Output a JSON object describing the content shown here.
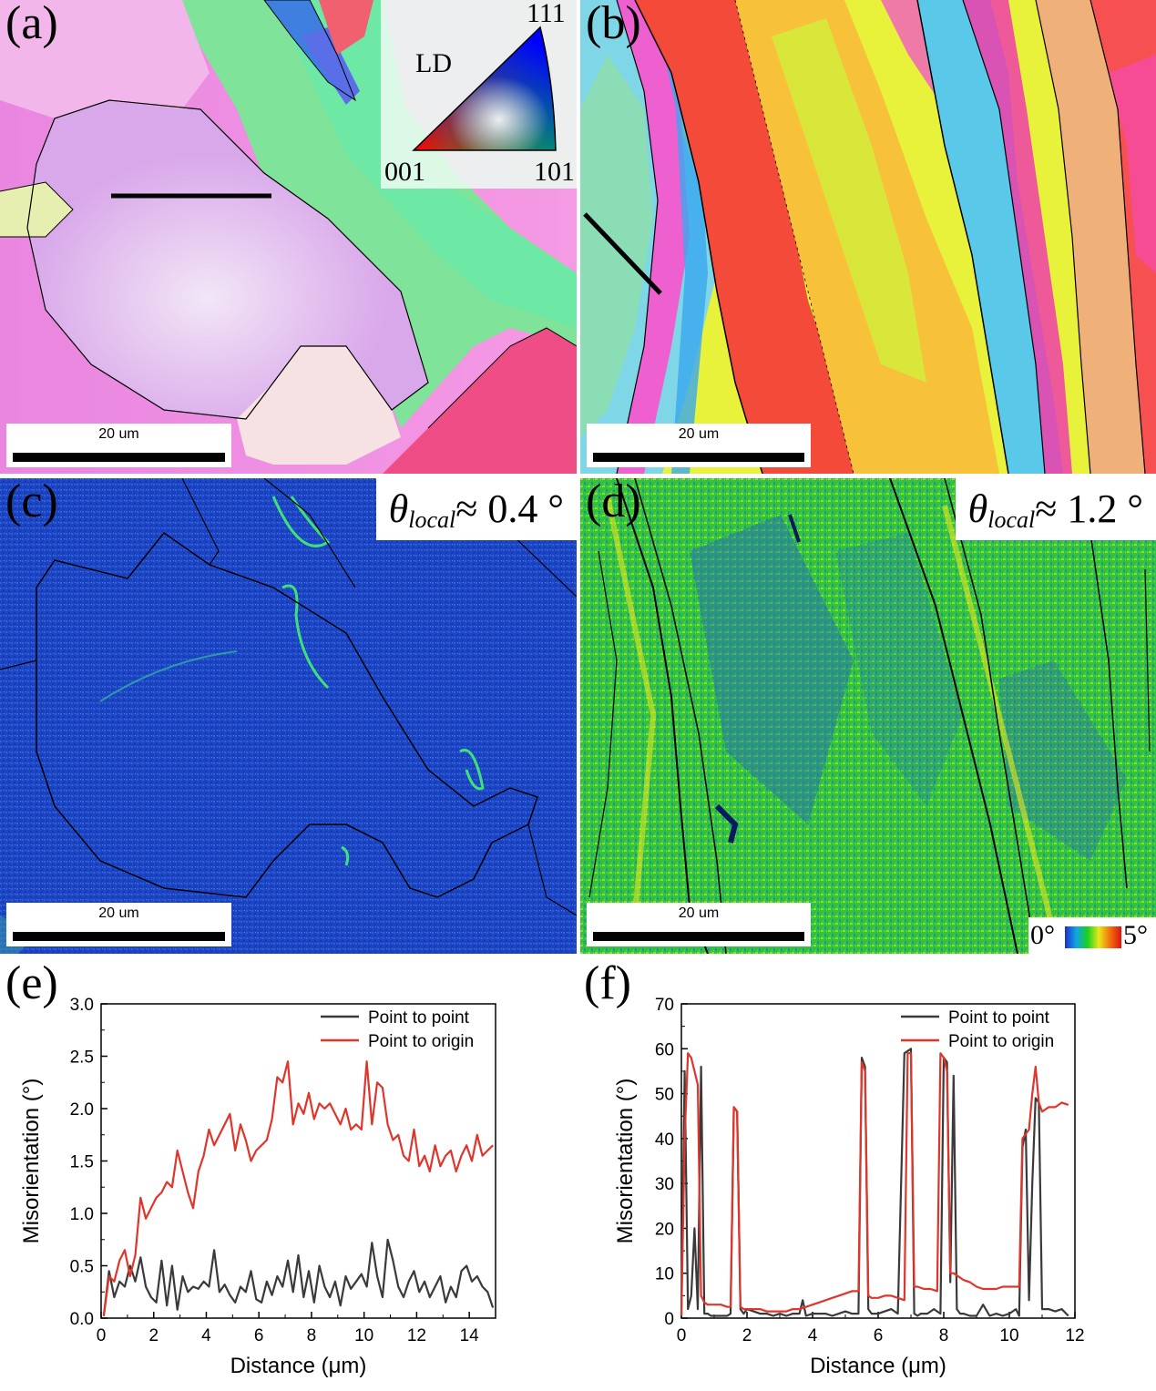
{
  "panels": {
    "a": {
      "label": "(a)",
      "scale_text": "20 um"
    },
    "b": {
      "label": "(b)",
      "scale_text": "20 um"
    },
    "c": {
      "label": "(c)",
      "scale_text": "20 um",
      "theta_sub": "local",
      "theta_value": "≈ 0.4 °"
    },
    "d": {
      "label": "(d)",
      "scale_text": "20 um",
      "theta_sub": "local",
      "theta_value": "≈ 1.2 °"
    },
    "e": {
      "label": "(e)"
    },
    "f": {
      "label": "(f)"
    }
  },
  "ipf_legend": {
    "axis": "LD",
    "corner_111": "111",
    "corner_001": "001",
    "corner_101": "101"
  },
  "kam_colorbar": {
    "min_label": "0°",
    "max_label": "5°"
  },
  "colors": {
    "point_to_point": "#3a3a3a",
    "point_to_origin": "#e0352b",
    "kam_low": "#1f2fc8",
    "kam_high": "#e01010"
  },
  "chart_data": [
    {
      "type": "line",
      "panel": "(e)",
      "xlabel": "Distance (μm)",
      "ylabel": "Misorientation (°)",
      "xlim": [
        0,
        15
      ],
      "ylim": [
        0,
        3.0
      ],
      "xticks": [
        "0",
        "2",
        "4",
        "6",
        "8",
        "10",
        "12",
        "14"
      ],
      "yticks": [
        "0.0",
        "0.5",
        "1.0",
        "1.5",
        "2.0",
        "2.5",
        "3.0"
      ],
      "legend_position": "top-right",
      "series": [
        {
          "name": "Point to point",
          "x": [
            0.1,
            0.3,
            0.5,
            0.7,
            0.9,
            1.1,
            1.3,
            1.5,
            1.7,
            1.9,
            2.1,
            2.3,
            2.5,
            2.7,
            2.9,
            3.1,
            3.3,
            3.5,
            3.7,
            3.9,
            4.1,
            4.3,
            4.5,
            4.7,
            4.9,
            5.1,
            5.3,
            5.5,
            5.7,
            5.9,
            6.1,
            6.3,
            6.5,
            6.7,
            6.9,
            7.1,
            7.3,
            7.5,
            7.7,
            7.9,
            8.1,
            8.3,
            8.5,
            8.7,
            8.9,
            9.1,
            9.3,
            9.5,
            9.7,
            9.9,
            10.1,
            10.3,
            10.5,
            10.7,
            10.9,
            11.1,
            11.3,
            11.5,
            11.7,
            11.9,
            12.1,
            12.3,
            12.5,
            12.7,
            12.9,
            13.1,
            13.3,
            13.5,
            13.7,
            13.9,
            14.1,
            14.3,
            14.5,
            14.7,
            14.9
          ],
          "y": [
            0.02,
            0.45,
            0.2,
            0.35,
            0.3,
            0.5,
            0.35,
            0.58,
            0.3,
            0.2,
            0.15,
            0.55,
            0.12,
            0.5,
            0.08,
            0.4,
            0.25,
            0.3,
            0.28,
            0.35,
            0.3,
            0.65,
            0.25,
            0.32,
            0.22,
            0.15,
            0.3,
            0.25,
            0.45,
            0.18,
            0.15,
            0.35,
            0.22,
            0.4,
            0.3,
            0.55,
            0.25,
            0.6,
            0.2,
            0.45,
            0.15,
            0.5,
            0.3,
            0.2,
            0.35,
            0.12,
            0.4,
            0.28,
            0.35,
            0.42,
            0.3,
            0.72,
            0.4,
            0.2,
            0.75,
            0.55,
            0.3,
            0.2,
            0.35,
            0.45,
            0.25,
            0.35,
            0.2,
            0.3,
            0.4,
            0.15,
            0.3,
            0.2,
            0.45,
            0.5,
            0.35,
            0.4,
            0.3,
            0.25,
            0.1
          ]
        },
        {
          "name": "Point to origin",
          "x": [
            0.1,
            0.3,
            0.5,
            0.7,
            0.9,
            1.1,
            1.3,
            1.5,
            1.7,
            1.9,
            2.1,
            2.3,
            2.5,
            2.7,
            2.9,
            3.1,
            3.3,
            3.5,
            3.7,
            3.9,
            4.1,
            4.3,
            4.5,
            4.7,
            4.9,
            5.1,
            5.3,
            5.5,
            5.7,
            5.9,
            6.1,
            6.3,
            6.5,
            6.7,
            6.9,
            7.1,
            7.3,
            7.5,
            7.7,
            7.9,
            8.1,
            8.3,
            8.5,
            8.7,
            8.9,
            9.1,
            9.3,
            9.5,
            9.7,
            9.9,
            10.1,
            10.3,
            10.5,
            10.7,
            10.9,
            11.1,
            11.3,
            11.5,
            11.7,
            11.9,
            12.1,
            12.3,
            12.5,
            12.7,
            12.9,
            13.1,
            13.3,
            13.5,
            13.7,
            13.9,
            14.1,
            14.3,
            14.5,
            14.7,
            14.9
          ],
          "y": [
            0.02,
            0.4,
            0.35,
            0.55,
            0.65,
            0.4,
            0.6,
            1.15,
            0.95,
            1.05,
            1.15,
            1.2,
            1.3,
            1.25,
            1.6,
            1.4,
            1.2,
            1.05,
            1.4,
            1.55,
            1.8,
            1.65,
            1.75,
            1.85,
            1.95,
            1.6,
            1.85,
            1.7,
            1.5,
            1.6,
            1.65,
            1.7,
            1.9,
            2.3,
            2.25,
            2.45,
            1.85,
            2.05,
            1.95,
            2.15,
            1.9,
            2.05,
            2.0,
            2.05,
            1.95,
            1.85,
            2.0,
            1.8,
            1.85,
            1.8,
            2.45,
            1.85,
            2.25,
            2.2,
            1.85,
            1.7,
            1.75,
            1.55,
            1.5,
            1.8,
            1.45,
            1.55,
            1.4,
            1.65,
            1.45,
            1.55,
            1.6,
            1.4,
            1.55,
            1.65,
            1.5,
            1.75,
            1.55,
            1.6,
            1.65
          ]
        }
      ]
    },
    {
      "type": "line",
      "panel": "(f)",
      "xlabel": "Distance (μm)",
      "ylabel": "Misorientation (°)",
      "xlim": [
        0,
        12
      ],
      "ylim": [
        0,
        70
      ],
      "xticks": [
        "0",
        "2",
        "4",
        "6",
        "8",
        "10",
        "12"
      ],
      "yticks": [
        "0",
        "10",
        "20",
        "30",
        "40",
        "50",
        "60",
        "70"
      ],
      "legend_position": "top-right",
      "series": [
        {
          "name": "Point to point",
          "x": [
            0.0,
            0.1,
            0.2,
            0.3,
            0.4,
            0.5,
            0.6,
            0.7,
            0.8,
            0.9,
            1.0,
            1.2,
            1.4,
            1.5,
            1.6,
            1.7,
            1.8,
            1.9,
            2.0,
            2.2,
            2.4,
            2.6,
            2.8,
            3.0,
            3.2,
            3.4,
            3.6,
            3.7,
            3.8,
            4.0,
            4.2,
            4.4,
            4.6,
            4.8,
            5.0,
            5.2,
            5.4,
            5.5,
            5.6,
            5.7,
            5.8,
            6.0,
            6.2,
            6.4,
            6.6,
            6.8,
            6.9,
            7.0,
            7.1,
            7.2,
            7.3,
            7.5,
            7.7,
            7.9,
            8.0,
            8.1,
            8.2,
            8.3,
            8.4,
            8.5,
            8.6,
            8.8,
            9.0,
            9.2,
            9.4,
            9.6,
            9.8,
            10.0,
            10.2,
            10.3,
            10.4,
            10.5,
            10.6,
            10.7,
            10.8,
            10.9,
            11.0,
            11.2,
            11.4,
            11.6,
            11.8
          ],
          "y": [
            0.5,
            55,
            2,
            5,
            20,
            2,
            56,
            1,
            1,
            0.5,
            0.5,
            0.5,
            0.5,
            1,
            47,
            46,
            2,
            1,
            2,
            1.5,
            1,
            1,
            0.5,
            1,
            0.5,
            1,
            1,
            4,
            0.5,
            1,
            1,
            1,
            0.5,
            1,
            1.5,
            1,
            1,
            58,
            56,
            2,
            1,
            1,
            1.5,
            2,
            1,
            59,
            59.5,
            60,
            1,
            0.5,
            1,
            1,
            2,
            1,
            58,
            57,
            8,
            54,
            2,
            1,
            1,
            0.5,
            0.5,
            3,
            0.5,
            1,
            0.5,
            1,
            2,
            0.5,
            38,
            42,
            4,
            30,
            49,
            48,
            2,
            2,
            1.5,
            2,
            0.5
          ]
        },
        {
          "name": "Point to origin",
          "x": [
            0.0,
            0.1,
            0.2,
            0.3,
            0.4,
            0.5,
            0.6,
            0.7,
            0.8,
            1.0,
            1.2,
            1.4,
            1.5,
            1.6,
            1.7,
            1.8,
            1.9,
            2.0,
            2.2,
            2.4,
            2.6,
            2.8,
            3.0,
            3.2,
            3.4,
            3.6,
            3.8,
            4.0,
            4.2,
            4.4,
            4.6,
            4.8,
            5.0,
            5.2,
            5.4,
            5.5,
            5.6,
            5.7,
            5.8,
            6.0,
            6.2,
            6.4,
            6.6,
            6.8,
            6.9,
            7.0,
            7.1,
            7.2,
            7.4,
            7.6,
            7.8,
            7.9,
            8.0,
            8.1,
            8.2,
            8.3,
            8.4,
            8.5,
            8.6,
            8.8,
            9.0,
            9.2,
            9.4,
            9.6,
            9.8,
            10.0,
            10.2,
            10.3,
            10.4,
            10.5,
            10.6,
            10.7,
            10.8,
            10.9,
            11.0,
            11.2,
            11.4,
            11.6,
            11.8
          ],
          "y": [
            0.5,
            40,
            59,
            58,
            55,
            52,
            5,
            3.5,
            3,
            3,
            3,
            2.5,
            2.5,
            47,
            46,
            2.5,
            2,
            2,
            2,
            2,
            1.5,
            1.5,
            1.5,
            1.5,
            2,
            2,
            2.5,
            3,
            3.5,
            4,
            4.5,
            5,
            5.5,
            6,
            6,
            57,
            55,
            5,
            4.5,
            4.5,
            5,
            5,
            4.5,
            4,
            59,
            59,
            7,
            7,
            6.5,
            6.5,
            6,
            59,
            58,
            55,
            10,
            10,
            9.5,
            9,
            8.5,
            8,
            7,
            6.5,
            6.5,
            6.5,
            7,
            7,
            7,
            7,
            40,
            41,
            42,
            50,
            56,
            48,
            46,
            47,
            47,
            48,
            47.5
          ]
        }
      ]
    }
  ]
}
